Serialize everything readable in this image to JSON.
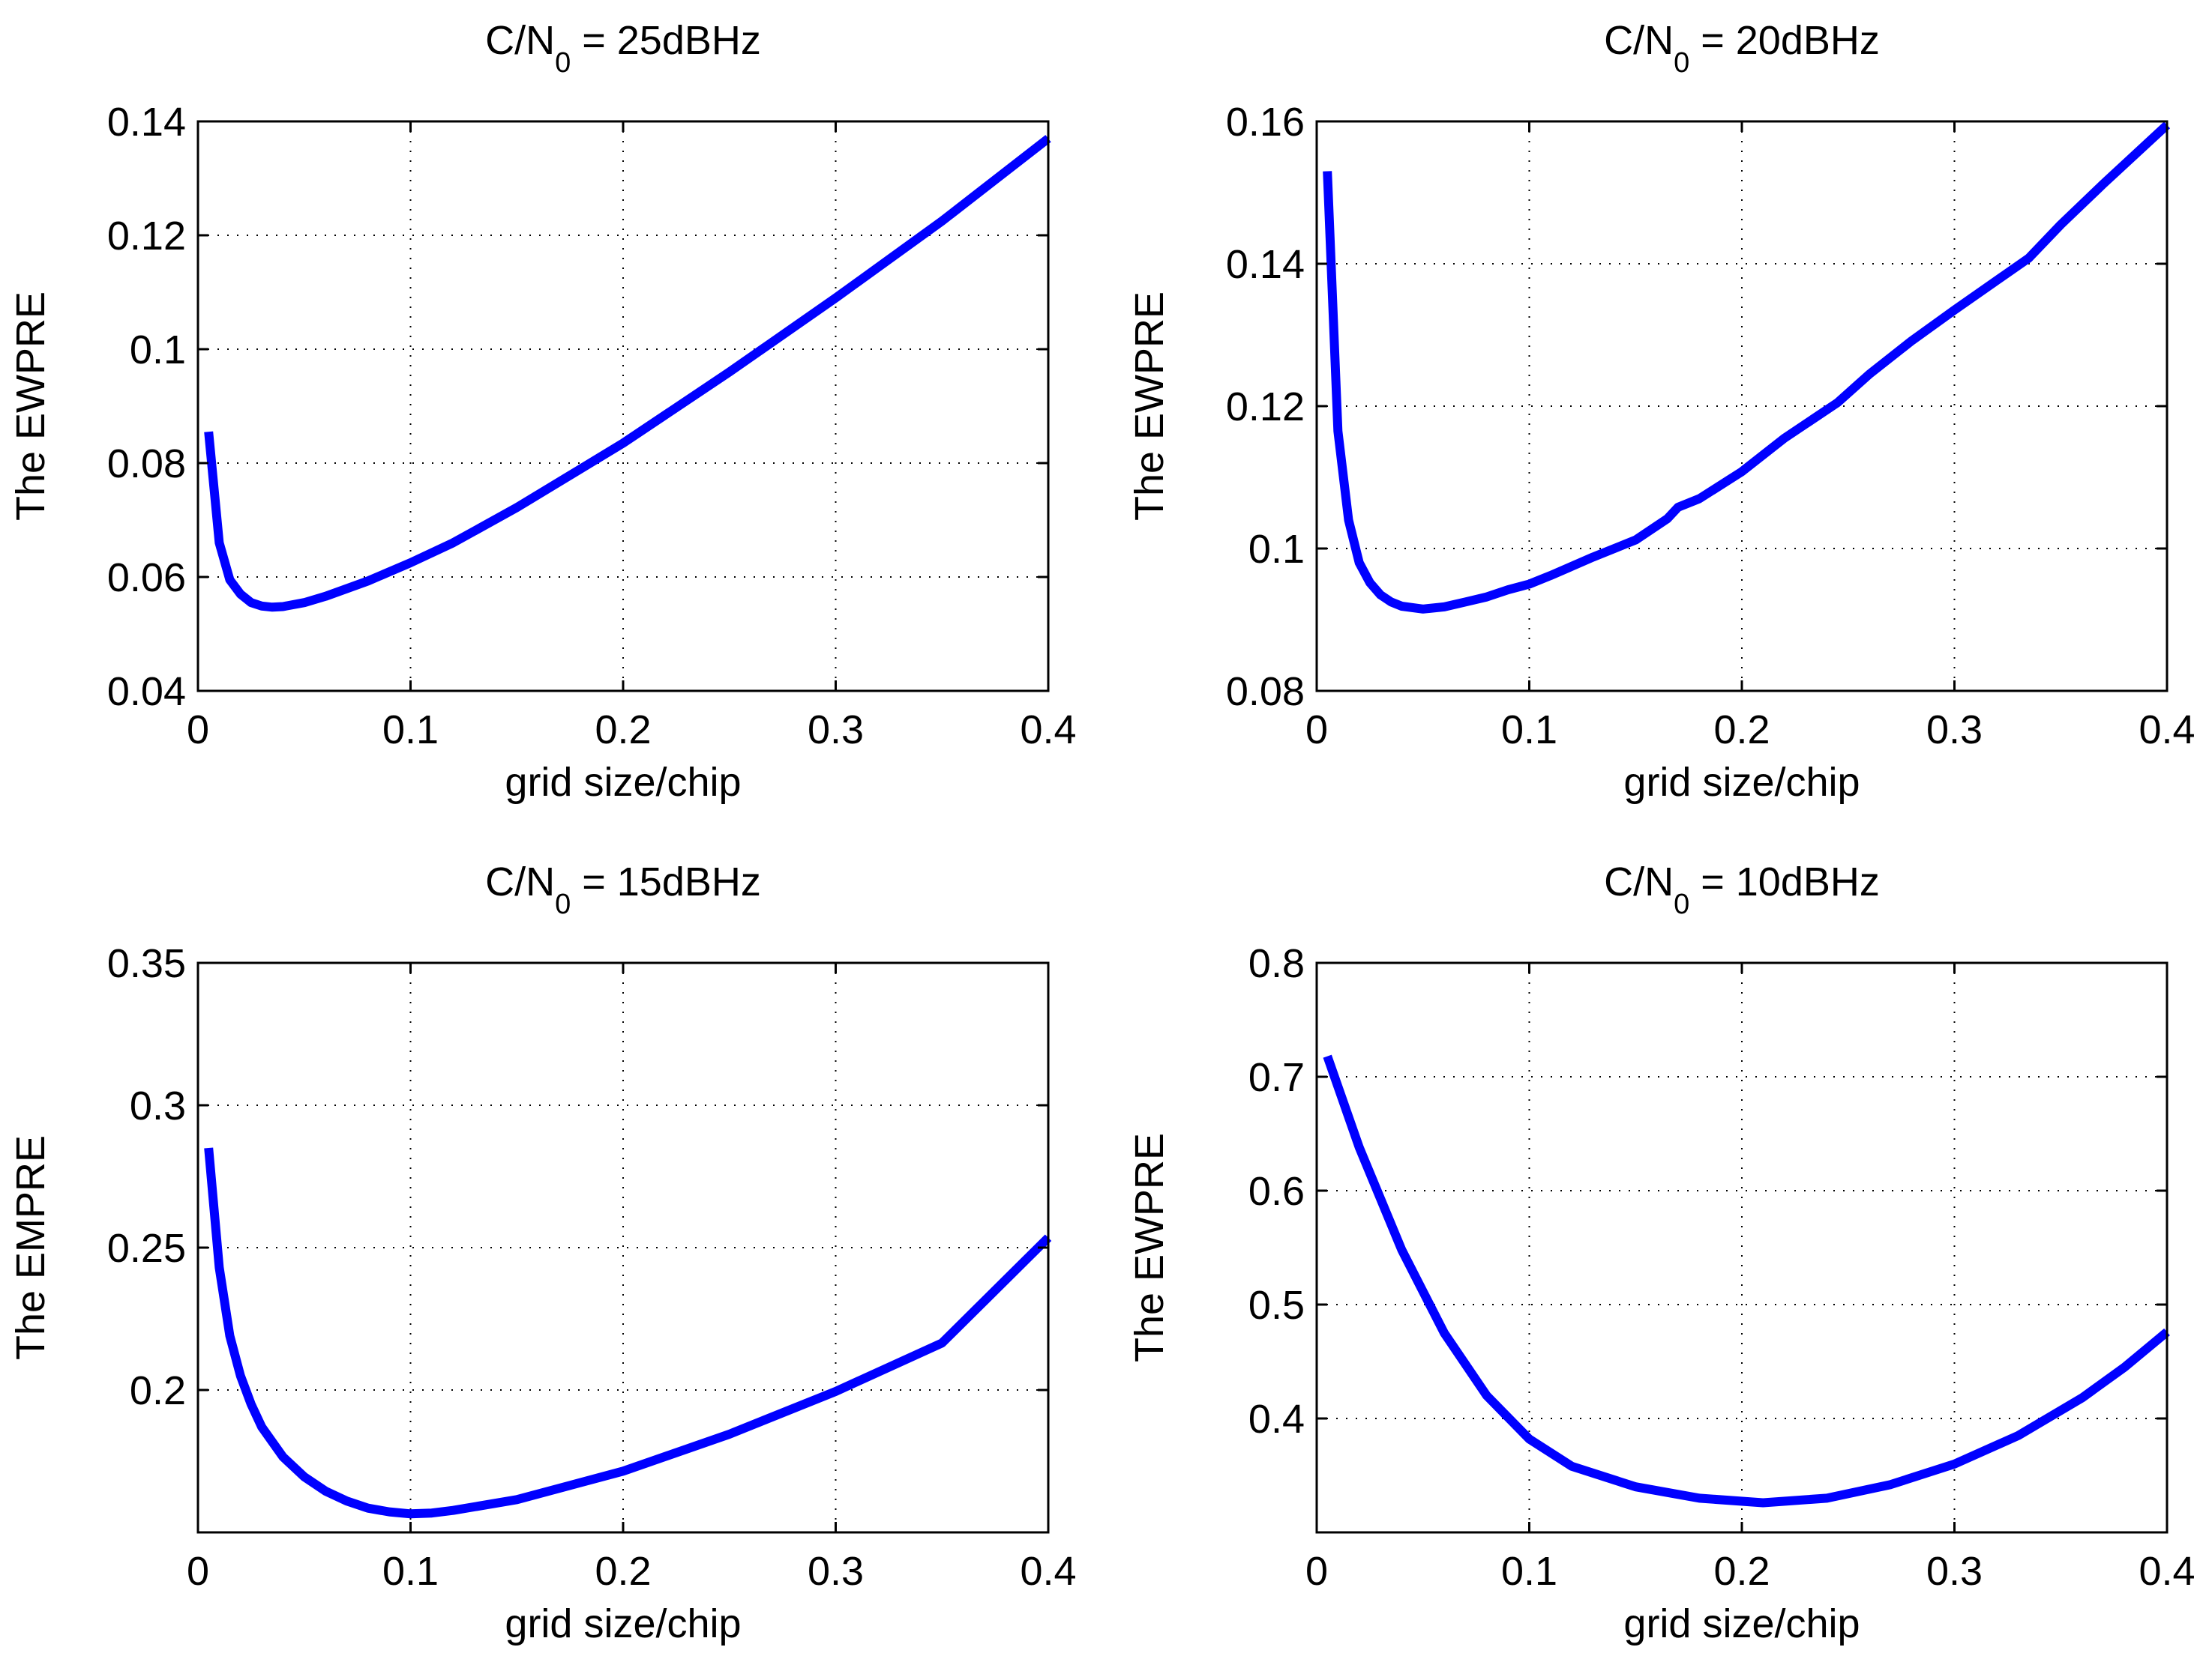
{
  "chart_data": [
    {
      "type": "line",
      "title": {
        "prefix": "C/N",
        "subscript": "0",
        "suffix": " = 25dBHz"
      },
      "xlabel": "grid size/chip",
      "ylabel": "The EWPRE",
      "xlim": [
        0,
        0.4
      ],
      "ylim": [
        0.04,
        0.14
      ],
      "xticks": [
        0,
        0.1,
        0.2,
        0.3,
        0.4
      ],
      "xtick_labels": [
        "0",
        "0.1",
        "0.2",
        "0.3",
        "0.4"
      ],
      "yticks": [
        0.04,
        0.06,
        0.08,
        0.1,
        0.12,
        0.14
      ],
      "ytick_labels": [
        "0.04",
        "0.06",
        "0.08",
        "0.1",
        "0.12",
        "0.14"
      ],
      "grid": true,
      "line_color": "#0000ff",
      "series": [
        {
          "x": [
            0.005,
            0.01,
            0.015,
            0.02,
            0.025,
            0.03,
            0.035,
            0.04,
            0.05,
            0.06,
            0.08,
            0.1,
            0.12,
            0.15,
            0.2,
            0.25,
            0.3,
            0.35,
            0.4
          ],
          "y": [
            0.0855,
            0.066,
            0.0595,
            0.057,
            0.0555,
            0.0549,
            0.0547,
            0.0548,
            0.0555,
            0.0566,
            0.0593,
            0.0625,
            0.066,
            0.0722,
            0.0835,
            0.096,
            0.109,
            0.1225,
            0.137
          ]
        }
      ]
    },
    {
      "type": "line",
      "title": {
        "prefix": "C/N",
        "subscript": "0",
        "suffix": " = 20dBHz"
      },
      "xlabel": "grid size/chip",
      "ylabel": "The EWPRE",
      "xlim": [
        0,
        0.4
      ],
      "ylim": [
        0.08,
        0.16
      ],
      "xticks": [
        0,
        0.1,
        0.2,
        0.3,
        0.4
      ],
      "xtick_labels": [
        "0",
        "0.1",
        "0.2",
        "0.3",
        "0.4"
      ],
      "yticks": [
        0.08,
        0.1,
        0.12,
        0.14,
        0.16
      ],
      "ytick_labels": [
        "0.08",
        "0.1",
        "0.12",
        "0.14",
        "0.16"
      ],
      "grid": true,
      "line_color": "#0000ff",
      "series": [
        {
          "x": [
            0.005,
            0.01,
            0.015,
            0.02,
            0.025,
            0.03,
            0.035,
            0.04,
            0.05,
            0.06,
            0.07,
            0.08,
            0.09,
            0.1,
            0.11,
            0.12,
            0.13,
            0.15,
            0.165,
            0.17,
            0.18,
            0.2,
            0.22,
            0.245,
            0.26,
            0.28,
            0.3,
            0.335,
            0.35,
            0.37,
            0.4
          ],
          "y": [
            0.153,
            0.1165,
            0.104,
            0.098,
            0.0952,
            0.0935,
            0.0925,
            0.0919,
            0.0915,
            0.0918,
            0.0925,
            0.0932,
            0.0942,
            0.095,
            0.0962,
            0.0975,
            0.0988,
            0.1012,
            0.1042,
            0.1058,
            0.107,
            0.1108,
            0.1155,
            0.1205,
            0.1245,
            0.1292,
            0.1335,
            0.1408,
            0.1455,
            0.1512,
            0.1595
          ]
        }
      ]
    },
    {
      "type": "line",
      "title": {
        "prefix": "C/N",
        "subscript": "0",
        "suffix": " = 15dBHz"
      },
      "xlabel": "grid size/chip",
      "ylabel": "The EMPRE",
      "xlim": [
        0,
        0.4
      ],
      "ylim": [
        0.15,
        0.35
      ],
      "xticks": [
        0,
        0.1,
        0.2,
        0.3,
        0.4
      ],
      "xtick_labels": [
        "0",
        "0.1",
        "0.2",
        "0.3",
        "0.4"
      ],
      "yticks": [
        0.2,
        0.25,
        0.3,
        0.35
      ],
      "ytick_labels": [
        "0.2",
        "0.25",
        "0.3",
        "0.35"
      ],
      "grid": true,
      "line_color": "#0000ff",
      "series": [
        {
          "x": [
            0.005,
            0.01,
            0.015,
            0.02,
            0.025,
            0.03,
            0.04,
            0.05,
            0.06,
            0.07,
            0.08,
            0.09,
            0.1,
            0.11,
            0.12,
            0.15,
            0.2,
            0.25,
            0.3,
            0.35,
            0.4
          ],
          "y": [
            0.285,
            0.243,
            0.219,
            0.205,
            0.195,
            0.187,
            0.1765,
            0.1695,
            0.1645,
            0.161,
            0.1585,
            0.1572,
            0.1565,
            0.1568,
            0.1577,
            0.1615,
            0.1715,
            0.1845,
            0.1995,
            0.2165,
            0.2535
          ]
        }
      ]
    },
    {
      "type": "line",
      "title": {
        "prefix": "C/N",
        "subscript": "0",
        "suffix": " = 10dBHz"
      },
      "xlabel": "grid size/chip",
      "ylabel": "The EWPRE",
      "xlim": [
        0,
        0.4
      ],
      "ylim": [
        0.3,
        0.8
      ],
      "xticks": [
        0,
        0.1,
        0.2,
        0.3,
        0.4
      ],
      "xtick_labels": [
        "0",
        "0.1",
        "0.2",
        "0.3",
        "0.4"
      ],
      "yticks": [
        0.4,
        0.5,
        0.6,
        0.7,
        0.8
      ],
      "ytick_labels": [
        "0.4",
        "0.5",
        "0.6",
        "0.7",
        "0.8"
      ],
      "grid": true,
      "line_color": "#0000ff",
      "series": [
        {
          "x": [
            0.005,
            0.02,
            0.04,
            0.06,
            0.08,
            0.1,
            0.12,
            0.15,
            0.18,
            0.21,
            0.24,
            0.27,
            0.3,
            0.33,
            0.36,
            0.38,
            0.4
          ],
          "y": [
            0.718,
            0.638,
            0.548,
            0.475,
            0.42,
            0.382,
            0.358,
            0.34,
            0.33,
            0.326,
            0.33,
            0.342,
            0.36,
            0.385,
            0.418,
            0.445,
            0.476
          ]
        }
      ]
    }
  ]
}
